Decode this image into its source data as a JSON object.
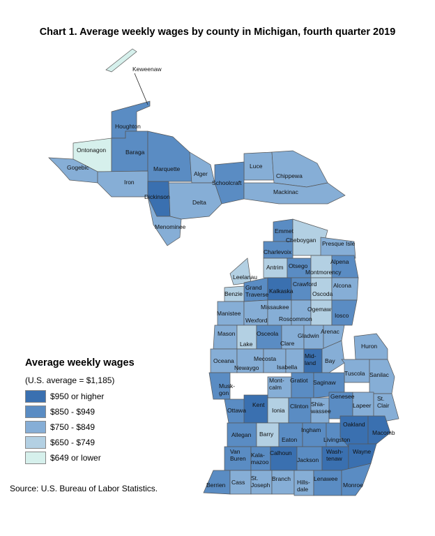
{
  "title": "Chart 1. Average weekly wages by county in Michigan, fourth quarter 2019",
  "legend": {
    "title": "Average weekly wages",
    "note": "(U.S. average = $1,185)",
    "items": [
      {
        "label": "$950 or higher",
        "color": "#3a70b0"
      },
      {
        "label": "$850 - $949",
        "color": "#5a8cc3"
      },
      {
        "label": "$750 - $849",
        "color": "#86aed6"
      },
      {
        "label": "$650 - $749",
        "color": "#b3d0e3"
      },
      {
        "label": "$649 or lower",
        "color": "#d6f0ec"
      }
    ]
  },
  "source": "Source: U.S. Bureau of Labor Statistics.",
  "counties": [
    {
      "name": "Keweenaw",
      "class": "$649 or lower"
    },
    {
      "name": "Houghton",
      "class": "$850 - $949"
    },
    {
      "name": "Ontonagon",
      "class": "$649 or lower"
    },
    {
      "name": "Baraga",
      "class": "$850 - $949"
    },
    {
      "name": "Gogebic",
      "class": "$750 - $849"
    },
    {
      "name": "Marquette",
      "class": "$850 - $949"
    },
    {
      "name": "Alger",
      "class": "$750 - $849"
    },
    {
      "name": "Luce",
      "class": "$750 - $849"
    },
    {
      "name": "Chippewa",
      "class": "$750 - $849"
    },
    {
      "name": "Iron",
      "class": "$750 - $849"
    },
    {
      "name": "Schoolcraft",
      "class": "$850 - $949"
    },
    {
      "name": "Mackinac",
      "class": "$750 - $849"
    },
    {
      "name": "Dickinson",
      "class": "$950 or higher"
    },
    {
      "name": "Delta",
      "class": "$750 - $849"
    },
    {
      "name": "Menominee",
      "class": "$750 - $849"
    },
    {
      "name": "Emmet",
      "class": "$850 - $949"
    },
    {
      "name": "Cheboygan",
      "class": "$650 - $749"
    },
    {
      "name": "Presque Isle",
      "class": "$750 - $849"
    },
    {
      "name": "Charlevoix",
      "class": "$850 - $949"
    },
    {
      "name": "Antrim",
      "class": "$650 - $749"
    },
    {
      "name": "Otsego",
      "class": "$850 - $949"
    },
    {
      "name": "Montmorency",
      "class": "$650 - $749"
    },
    {
      "name": "Alpena",
      "class": "$850 - $949"
    },
    {
      "name": "Leelanau",
      "class": "$650 - $749"
    },
    {
      "name": "Grand Traverse",
      "class": "$850 - $949"
    },
    {
      "name": "Kalkaska",
      "class": "$950 or higher"
    },
    {
      "name": "Crawford",
      "class": "$850 - $949"
    },
    {
      "name": "Oscoda",
      "class": "$650 - $749"
    },
    {
      "name": "Alcona",
      "class": "$750 - $849"
    },
    {
      "name": "Benzie",
      "class": "$650 - $749"
    },
    {
      "name": "Manistee",
      "class": "$750 - $849"
    },
    {
      "name": "Wexford",
      "class": "$750 - $849"
    },
    {
      "name": "Missaukee",
      "class": "$750 - $849"
    },
    {
      "name": "Roscommon",
      "class": "$750 - $849"
    },
    {
      "name": "Ogemaw",
      "class": "$650 - $749"
    },
    {
      "name": "Iosco",
      "class": "$850 - $949"
    },
    {
      "name": "Mason",
      "class": "$750 - $849"
    },
    {
      "name": "Lake",
      "class": "$650 - $749"
    },
    {
      "name": "Osceola",
      "class": "$850 - $949"
    },
    {
      "name": "Clare",
      "class": "$750 - $849"
    },
    {
      "name": "Gladwin",
      "class": "$750 - $849"
    },
    {
      "name": "Arenac",
      "class": "$750 - $849"
    },
    {
      "name": "Huron",
      "class": "$750 - $849"
    },
    {
      "name": "Oceana",
      "class": "$750 - $849"
    },
    {
      "name": "Newaygo",
      "class": "$750 - $849"
    },
    {
      "name": "Mecosta",
      "class": "$750 - $849"
    },
    {
      "name": "Isabella",
      "class": "$750 - $849"
    },
    {
      "name": "Midland",
      "class": "$950 or higher"
    },
    {
      "name": "Bay",
      "class": "$750 - $849"
    },
    {
      "name": "Tuscola",
      "class": "$750 - $849"
    },
    {
      "name": "Sanilac",
      "class": "$750 - $849"
    },
    {
      "name": "Muskegon",
      "class": "$850 - $949"
    },
    {
      "name": "Montcalm",
      "class": "$750 - $849"
    },
    {
      "name": "Gratiot",
      "class": "$850 - $949"
    },
    {
      "name": "Saginaw",
      "class": "$850 - $949"
    },
    {
      "name": "Ottawa",
      "class": "$850 - $949"
    },
    {
      "name": "Kent",
      "class": "$950 or higher"
    },
    {
      "name": "Ionia",
      "class": "$650 - $749"
    },
    {
      "name": "Clinton",
      "class": "$850 - $949"
    },
    {
      "name": "Shiawassee",
      "class": "$750 - $849"
    },
    {
      "name": "Genesee",
      "class": "$850 - $949"
    },
    {
      "name": "Lapeer",
      "class": "$750 - $849"
    },
    {
      "name": "St. Clair",
      "class": "$750 - $849"
    },
    {
      "name": "Allegan",
      "class": "$850 - $949"
    },
    {
      "name": "Barry",
      "class": "$650 - $749"
    },
    {
      "name": "Eaton",
      "class": "$850 - $949"
    },
    {
      "name": "Ingham",
      "class": "$850 - $949"
    },
    {
      "name": "Livingston",
      "class": "$850 - $949"
    },
    {
      "name": "Oakland",
      "class": "$950 or higher"
    },
    {
      "name": "Macomb",
      "class": "$950 or higher"
    },
    {
      "name": "Van Buren",
      "class": "$850 - $949"
    },
    {
      "name": "Kalamazoo",
      "class": "$850 - $949"
    },
    {
      "name": "Calhoun",
      "class": "$950 or higher"
    },
    {
      "name": "Jackson",
      "class": "$850 - $949"
    },
    {
      "name": "Washtenaw",
      "class": "$950 or higher"
    },
    {
      "name": "Wayne",
      "class": "$950 or higher"
    },
    {
      "name": "Berrien",
      "class": "$850 - $949"
    },
    {
      "name": "Cass",
      "class": "$750 - $849"
    },
    {
      "name": "St. Joseph",
      "class": "$750 - $849"
    },
    {
      "name": "Branch",
      "class": "$750 - $849"
    },
    {
      "name": "Hillsdale",
      "class": "$750 - $849"
    },
    {
      "name": "Lenawee",
      "class": "$850 - $949"
    },
    {
      "name": "Monroe",
      "class": "$850 - $949"
    }
  ]
}
